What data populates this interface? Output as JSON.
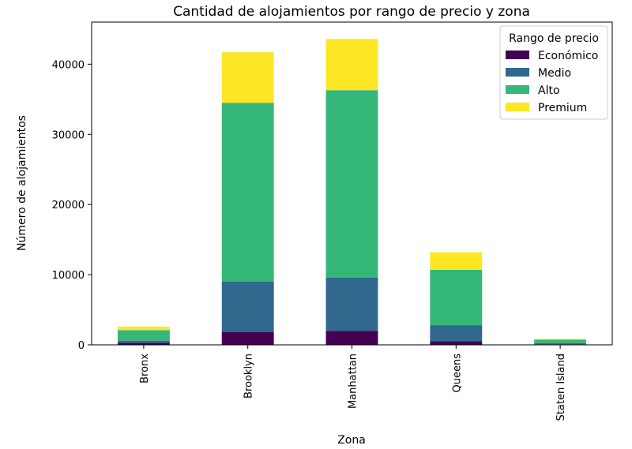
{
  "chart_data": {
    "type": "bar",
    "stacked": true,
    "title": "Cantidad de alojamientos por rango de precio y zona",
    "xlabel": "Zona",
    "ylabel": "Número de alojamientos",
    "ylim": [
      0,
      46000
    ],
    "yticks": [
      0,
      10000,
      20000,
      30000,
      40000
    ],
    "categories": [
      "Bronx",
      "Brooklyn",
      "Manhattan",
      "Queens",
      "Staten Island"
    ],
    "series": [
      {
        "name": "Económico",
        "color": "#440154",
        "values": [
          300,
          1800,
          2000,
          500,
          80
        ]
      },
      {
        "name": "Medio",
        "color": "#31688e",
        "values": [
          300,
          7200,
          7600,
          2300,
          170
        ]
      },
      {
        "name": "Alto",
        "color": "#35b779",
        "values": [
          1500,
          25500,
          26700,
          7900,
          500
        ]
      },
      {
        "name": "Premium",
        "color": "#fde725",
        "values": [
          500,
          7200,
          7300,
          2500,
          100
        ]
      }
    ],
    "legend": {
      "title": "Rango de precio",
      "placement": "top-right"
    }
  }
}
